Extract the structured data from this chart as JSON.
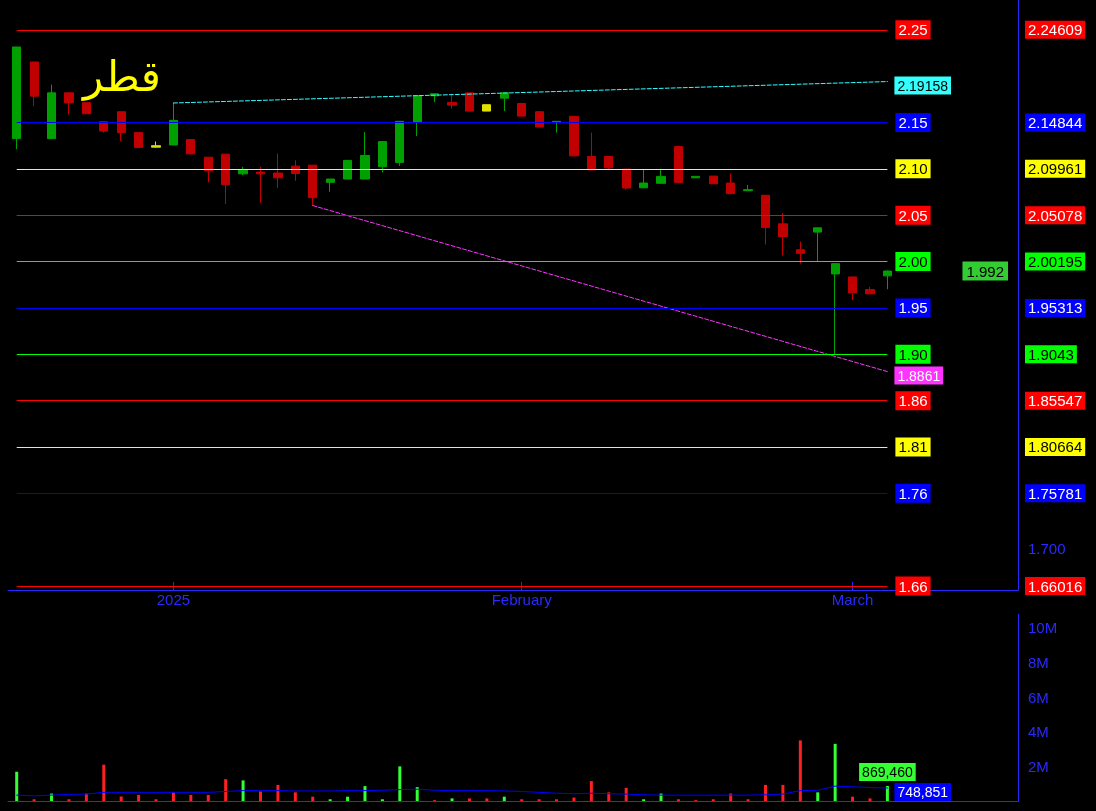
{
  "chart_data": [
    {
      "type": "candlestick",
      "title": "قطر",
      "categories": [
        null,
        null,
        null,
        null,
        null,
        null,
        null,
        null,
        null,
        "2025",
        null,
        null,
        null,
        null,
        null,
        null,
        null,
        null,
        null,
        null,
        null,
        null,
        null,
        null,
        null,
        null,
        null,
        null,
        null,
        "February",
        null,
        null,
        null,
        null,
        null,
        null,
        null,
        null,
        null,
        null,
        null,
        null,
        null,
        null,
        null,
        null,
        null,
        null,
        "March",
        null,
        null,
        null,
        null,
        null,
        null,
        null,
        null,
        null
      ],
      "ohlc": [
        [
          2.1315,
          2.228,
          2.1203,
          2.228
        ],
        [
          2.2122,
          2.2122,
          2.1657,
          2.1762
        ],
        [
          2.1315,
          2.1884,
          2.1315,
          2.1797
        ],
        [
          2.1797,
          2.1797,
          2.157,
          2.1693
        ],
        [
          2.1693,
          2.1693,
          2.1577,
          2.1577
        ],
        [
          2.1493,
          2.1493,
          2.1378,
          2.1395
        ],
        [
          2.1598,
          2.1598,
          2.129,
          2.1378
        ],
        [
          2.1378,
          2.1378,
          2.1221,
          2.1221
        ],
        [
          2.124,
          2.1284,
          2.1221,
          2.1225
        ],
        [
          2.1248,
          2.1693,
          2.1248,
          2.1507
        ],
        [
          2.1305,
          2.1305,
          2.1154,
          2.1154
        ],
        [
          2.1119,
          2.1119,
          2.0854,
          2.0976
        ],
        [
          2.1151,
          2.1151,
          2.0627,
          2.0829
        ],
        [
          2.0944,
          2.1018,
          2.0931,
          2.0983
        ],
        [
          2.0962,
          2.1018,
          2.0637,
          2.0944
        ],
        [
          2.0952,
          2.1158,
          2.0794,
          2.0902
        ],
        [
          2.1025,
          2.1088,
          2.0871,
          2.0948
        ],
        [
          2.1035,
          2.1035,
          2.0609,
          2.0693
        ],
        [
          2.0854,
          2.0889,
          2.0756,
          2.0889
        ],
        [
          2.0889,
          2.1085,
          2.0889,
          2.1085
        ],
        [
          2.0889,
          2.1384,
          2.0889,
          2.1137
        ],
        [
          2.1018,
          2.1284,
          2.0959,
          2.1284
        ],
        [
          2.1064,
          2.1497,
          2.1028,
          2.1497
        ],
        [
          2.1489,
          2.1769,
          2.1343,
          2.1769
        ],
        [
          2.1766,
          2.1787,
          2.1699,
          2.1787
        ],
        [
          2.1696,
          2.1787,
          2.163,
          2.1668
        ],
        [
          2.1797,
          2.1797,
          2.1605,
          2.1605
        ],
        [
          2.1672,
          2.1672,
          2.1605,
          2.1605
        ],
        [
          2.1741,
          2.1797,
          2.1605,
          2.1797
        ],
        [
          2.1685,
          2.1685,
          2.1552,
          2.1552
        ],
        [
          2.1598,
          2.1598,
          2.1437,
          2.1437
        ],
        [
          2.1483,
          2.1497,
          2.1378,
          2.1497
        ],
        [
          2.1549,
          2.1549,
          2.1133,
          2.1133
        ],
        [
          2.1127,
          2.1378,
          2.0986,
          2.0986
        ],
        [
          2.1127,
          2.1127,
          2.0994,
          2.1007
        ],
        [
          2.0994,
          2.0994,
          2.0777,
          2.0794
        ],
        [
          2.0797,
          2.0994,
          2.0797,
          2.0847
        ],
        [
          2.0844,
          2.0994,
          2.0844,
          2.0917
        ],
        [
          2.1231,
          2.1231,
          2.0854,
          2.0854
        ],
        [
          2.0902,
          2.0917,
          2.0902,
          2.0917
        ],
        [
          2.092,
          2.092,
          2.0839,
          2.0839
        ],
        [
          2.0847,
          2.0948,
          2.0735,
          2.0735
        ],
        [
          2.0766,
          2.0826,
          2.0766,
          2.0777
        ],
        [
          2.0718,
          2.0718,
          2.02,
          2.0378
        ],
        [
          2.0417,
          2.0529,
          2.0085,
          2.0284
        ],
        [
          2.0144,
          2.0231,
          1.9998,
          2.0106
        ],
        [
          2.033,
          2.0375,
          2.0015,
          2.0375
        ],
        [
          1.989,
          1.9998,
          1.9043,
          1.9998
        ],
        [
          1.9858,
          1.9858,
          1.9613,
          1.9691
        ],
        [
          1.9725,
          1.9753,
          1.968,
          1.968
        ],
        [
          1.9869,
          1.9925,
          1.9728,
          1.992
        ],
        null,
        null,
        null,
        null,
        null,
        null,
        null
      ],
      "colors": [
        "#00a000",
        "#c00000",
        "#00a000",
        "#c00000",
        "#c00000",
        "#c00000",
        "#c00000",
        "#c00000",
        "#e0e000",
        "#00a000",
        "#c00000",
        "#c00000",
        "#c00000",
        "#00a000",
        "#c00000",
        "#c00000",
        "#c00000",
        "#c00000",
        "#00a000",
        "#00a000",
        "#00a000",
        "#00a000",
        "#00a000",
        "#00a000",
        "#00a000",
        "#c00000",
        "#c00000",
        "#e0e000",
        "#00a000",
        "#c00000",
        "#c00000",
        "#00a000",
        "#c00000",
        "#c00000",
        "#c00000",
        "#c00000",
        "#00a000",
        "#00a000",
        "#c00000",
        "#00a000",
        "#c00000",
        "#c00000",
        "#00a000",
        "#c00000",
        "#c00000",
        "#c00000",
        "#00a000",
        "#00a000",
        "#c00000",
        "#c00000",
        "#00a000",
        null,
        null,
        null,
        null,
        null,
        null,
        null
      ],
      "series": [
        {
          "type": "line",
          "color": "#33ffff",
          "line_style": "dashed",
          "values": [
            null,
            null,
            null,
            null,
            null,
            null,
            null,
            null,
            null,
            2.169,
            null,
            null,
            null,
            null,
            null,
            null,
            null,
            null,
            null,
            null,
            null,
            null,
            null,
            null,
            null,
            null,
            null,
            null,
            null,
            null,
            null,
            null,
            null,
            null,
            null,
            null,
            null,
            null,
            null,
            null,
            null,
            null,
            null,
            null,
            null,
            null,
            null,
            null,
            null,
            null,
            2.19158,
            null,
            null,
            null,
            null,
            null,
            null,
            null
          ],
          "value_labels": [
            null,
            null,
            null,
            null,
            null,
            null,
            null,
            null,
            null,
            null,
            null,
            null,
            null,
            null,
            null,
            null,
            null,
            null,
            null,
            null,
            null,
            null,
            null,
            null,
            null,
            null,
            null,
            null,
            null,
            null,
            null,
            null,
            null,
            null,
            null,
            null,
            null,
            null,
            null,
            null,
            null,
            null,
            null,
            null,
            null,
            null,
            null,
            null,
            null,
            null,
            "2.19158",
            null,
            null,
            null,
            null,
            null,
            null,
            null
          ]
        },
        {
          "type": "line",
          "color": "#ff33ff",
          "line_style": "dashed",
          "values": [
            null,
            null,
            null,
            null,
            null,
            null,
            null,
            null,
            null,
            null,
            null,
            null,
            null,
            null,
            null,
            null,
            null,
            2.061,
            null,
            null,
            null,
            null,
            null,
            null,
            null,
            null,
            null,
            null,
            null,
            null,
            null,
            null,
            null,
            null,
            null,
            null,
            null,
            null,
            null,
            null,
            null,
            null,
            null,
            null,
            null,
            null,
            null,
            null,
            null,
            null,
            1.8861,
            null,
            null,
            null,
            null,
            null,
            null,
            null
          ],
          "value_labels": [
            null,
            null,
            null,
            null,
            null,
            null,
            null,
            null,
            null,
            null,
            null,
            null,
            null,
            null,
            null,
            null,
            null,
            null,
            null,
            null,
            null,
            null,
            null,
            null,
            null,
            null,
            null,
            null,
            null,
            null,
            null,
            null,
            null,
            null,
            null,
            null,
            null,
            null,
            null,
            null,
            null,
            null,
            null,
            null,
            null,
            null,
            null,
            null,
            null,
            null,
            "1.8861",
            null,
            null,
            null,
            null,
            null,
            null,
            null
          ]
        }
      ],
      "ylim": [
        1.656,
        2.2775
      ],
      "yticks": [
        1.66016,
        {
          "value": 1.7,
          "label": "1.700"
        },
        1.75781,
        1.80664,
        1.85547,
        1.9043,
        1.95313,
        2.00195,
        2.05078,
        2.09961,
        2.14844,
        2.24609
      ],
      "ref_lines": [
        {
          "axis": "y",
          "value": 2.24609,
          "label": "2.25",
          "color": "#ff0000"
        },
        {
          "axis": "y",
          "value": 2.14844,
          "label": "2.15",
          "color": "#0000ff"
        },
        {
          "axis": "y",
          "value": 2.09961,
          "label": "2.10",
          "color": "#ffff00"
        },
        {
          "axis": "y",
          "value": 2.05078,
          "label": "2.05",
          "color": "#ff0000"
        },
        {
          "axis": "y",
          "value": 2.00195,
          "label": "2.00",
          "color": "#00ff00"
        },
        {
          "axis": "y",
          "value": 1.95313,
          "label": "1.95",
          "color": "#0000ff"
        },
        {
          "axis": "y",
          "value": 1.9043,
          "label": "1.90",
          "color": "#00ff00"
        },
        {
          "axis": "y",
          "value": 1.85547,
          "label": "1.86",
          "color": "#ff0000"
        },
        {
          "axis": "y",
          "value": 1.80664,
          "label": "1.81",
          "color": "#ffff00"
        },
        {
          "axis": "y",
          "value": 1.75781,
          "label": "1.76",
          "color": "#0000ff"
        },
        {
          "axis": "y",
          "value": 1.66016,
          "label": "1.66",
          "color": "#ff0000"
        }
      ],
      "annotations": [
        "1.992"
      ],
      "marker": "none"
    },
    {
      "type": "bar",
      "categories": [
        null,
        null,
        null,
        null,
        null,
        null,
        null,
        null,
        null,
        null,
        null,
        null,
        null,
        null,
        null,
        null,
        null,
        null,
        null,
        null,
        null,
        null,
        null,
        null,
        null,
        null,
        null,
        null,
        null,
        null,
        null,
        null,
        null,
        null,
        null,
        null,
        null,
        null,
        null,
        null,
        null,
        null,
        null,
        null,
        null,
        null,
        null,
        null,
        null,
        null,
        null,
        null,
        null,
        null,
        null,
        null,
        null,
        null
      ],
      "values": [
        1690000,
        100000,
        430000,
        100000,
        430000,
        2100000,
        260000,
        350000,
        100000,
        500000,
        350000,
        350000,
        1260000,
        1190000,
        550000,
        930000,
        500000,
        250000,
        100000,
        250000,
        860000,
        100000,
        2000000,
        800000,
        50000,
        150000,
        150000,
        150000,
        250000,
        100000,
        100000,
        100000,
        200000,
        1150000,
        500000,
        760000,
        100000,
        430000,
        100000,
        50000,
        100000,
        430000,
        100000,
        930000,
        930000,
        3500000,
        500000,
        3300000,
        250000,
        150000,
        869460,
        null,
        null,
        null,
        null,
        null,
        null,
        null
      ],
      "colors": [
        "#33ff33",
        "#ff2020",
        "#33ff33",
        "#ff2020",
        "#ff2020",
        "#ff2020",
        "#ff2020",
        "#ff2020",
        "#ff2020",
        "#ff2020",
        "#ff2020",
        "#ff2020",
        "#ff2020",
        "#33ff33",
        "#ff2020",
        "#ff2020",
        "#ff2020",
        "#ff2020",
        "#33ff33",
        "#33ff33",
        "#33ff33",
        "#33ff33",
        "#33ff33",
        "#33ff33",
        "#ff2020",
        "#33ff33",
        "#ff2020",
        "#ff2020",
        "#33ff33",
        "#ff2020",
        "#ff2020",
        "#ff2020",
        "#ff2020",
        "#ff2020",
        "#ff2020",
        "#ff2020",
        "#33ff33",
        "#33ff33",
        "#ff2020",
        "#ff2020",
        "#ff2020",
        "#ff2020",
        "#ff2020",
        "#ff2020",
        "#ff2020",
        "#ff2020",
        "#33ff33",
        "#33ff33",
        "#ff2020",
        "#ff2020",
        "#33ff33",
        null,
        null,
        null,
        null,
        null,
        null,
        null
      ],
      "value_labels": [
        null,
        null,
        null,
        null,
        null,
        null,
        null,
        null,
        null,
        null,
        null,
        null,
        null,
        null,
        null,
        null,
        null,
        null,
        null,
        null,
        null,
        null,
        null,
        null,
        null,
        null,
        null,
        null,
        null,
        null,
        null,
        null,
        null,
        null,
        null,
        null,
        null,
        null,
        null,
        null,
        null,
        null,
        null,
        null,
        null,
        null,
        null,
        null,
        null,
        null,
        "869,460",
        null,
        null,
        null,
        null,
        null,
        null,
        null
      ],
      "series": [
        {
          "type": "line",
          "color": "#0000ff",
          "values": [
            340000,
            300000,
            340000,
            380000,
            400000,
            500000,
            500000,
            500000,
            500000,
            500000,
            500000,
            500000,
            550000,
            600000,
            600000,
            600000,
            580000,
            580000,
            580000,
            600000,
            600000,
            620000,
            660000,
            680000,
            620000,
            600000,
            600000,
            600000,
            580000,
            550000,
            500000,
            450000,
            420000,
            450000,
            420000,
            400000,
            360000,
            340000,
            340000,
            340000,
            340000,
            340000,
            340000,
            360000,
            400000,
            600000,
            620000,
            860000,
            820000,
            780000,
            748851,
            null,
            null,
            null,
            null,
            null,
            null,
            null
          ],
          "value_labels": [
            null,
            null,
            null,
            null,
            null,
            null,
            null,
            null,
            null,
            null,
            null,
            null,
            null,
            null,
            null,
            null,
            null,
            null,
            null,
            null,
            null,
            null,
            null,
            null,
            null,
            null,
            null,
            null,
            null,
            null,
            null,
            null,
            null,
            null,
            null,
            null,
            null,
            null,
            null,
            null,
            null,
            null,
            null,
            null,
            null,
            null,
            null,
            null,
            null,
            null,
            "748,851",
            null,
            null,
            null,
            null,
            null,
            null,
            null
          ]
        }
      ],
      "ylim": [
        0,
        10800000
      ],
      "yticks": [
        {
          "value": 2000000,
          "label": "2M"
        },
        {
          "value": 4000000,
          "label": "4M"
        },
        {
          "value": 6000000,
          "label": "6M"
        },
        {
          "value": 8000000,
          "label": "8M"
        },
        {
          "value": 10000000,
          "label": "10M"
        }
      ],
      "tick_labels": "y",
      "marker": "none"
    }
  ]
}
